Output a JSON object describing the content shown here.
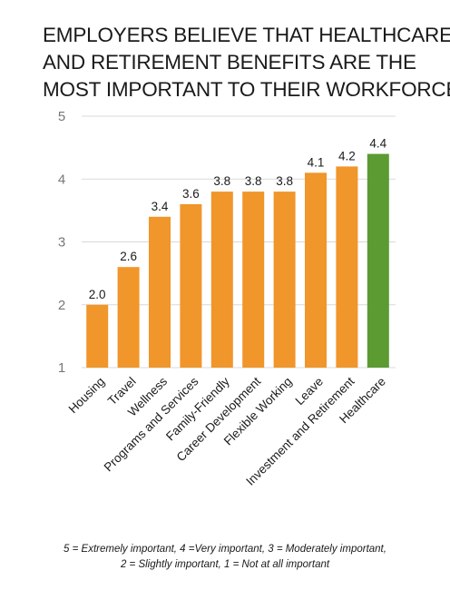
{
  "title_lines": [
    "EMPLOYERS BELIEVE THAT HEALTHCARE",
    "AND RETIREMENT BENEFITS ARE THE",
    "MOST IMPORTANT TO THEIR WORKFORCE"
  ],
  "footnote_lines": [
    "5 = Extremely important, 4 =Very important, 3 = Moderately important,",
    "2 = Slightly important, 1 = Not at all important"
  ],
  "colors": {
    "bar": "#F0962A",
    "highlight": "#5C9A32",
    "axis_text": "#777777",
    "grid": "#D9D9D9"
  },
  "chart_data": {
    "type": "bar",
    "title": "EMPLOYERS BELIEVE THAT HEALTHCARE AND RETIREMENT BENEFITS ARE THE MOST IMPORTANT TO THEIR WORKFORCE",
    "categories": [
      "Housing",
      "Travel",
      "Wellness",
      "Programs and Services",
      "Family-Friendly",
      "Career Development",
      "Flexible Working",
      "Leave",
      "Investment and Retirement",
      "Healthcare"
    ],
    "values": [
      2.0,
      2.6,
      3.4,
      3.6,
      3.8,
      3.8,
      3.8,
      4.1,
      4.2,
      4.4
    ],
    "value_labels": [
      "2.0",
      "2.6",
      "3.4",
      "3.6",
      "3.8",
      "3.8",
      "3.8",
      "4.1",
      "4.2",
      "4.4"
    ],
    "highlight_category": "Healthcare",
    "ylim": [
      1,
      5
    ],
    "yticks": [
      1,
      2,
      3,
      4,
      5
    ],
    "ytick_labels": [
      "1",
      "2",
      "3",
      "4",
      "5"
    ],
    "xlabel": "",
    "ylabel": "",
    "grid": true,
    "legend": "none"
  }
}
